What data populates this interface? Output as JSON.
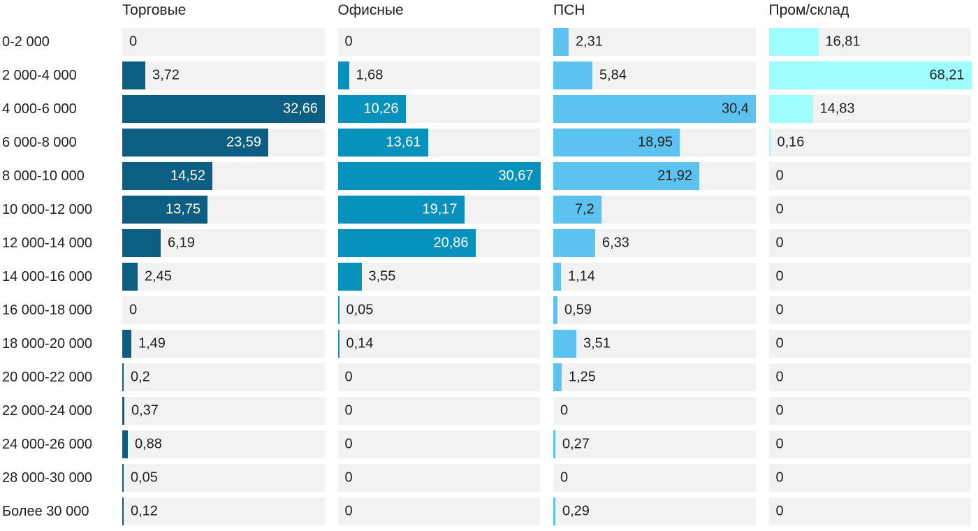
{
  "colors": {
    "background": "#ffffff",
    "track": "#f2f2f2",
    "text": "#212121",
    "value_text_outside": "#212121"
  },
  "chart_data": {
    "type": "bar",
    "orientation": "horizontal",
    "decimal_separator": ",",
    "grid": false,
    "legend": "column-headers-top",
    "categories": [
      "0-2 000",
      "2 000-4 000",
      "4 000-6 000",
      "6 000-8 000",
      "8 000-10 000",
      "10 000-12 000",
      "12 000-14 000",
      "14 000-16 000",
      "16 000-18 000",
      "18 000-20 000",
      "20 000-22 000",
      "22 000-24 000",
      "24 000-26 000",
      "28 000-30 000",
      "Более 30 000"
    ],
    "series": [
      {
        "name": "Торговые",
        "color": "#0c5e83",
        "inside_label_color": "#ffffff",
        "axis_max": 32.66,
        "values": [
          "0",
          "3,72",
          "32,66",
          "23,59",
          "14,52",
          "13,75",
          "6,19",
          "2,45",
          "0",
          "1,49",
          "0,2",
          "0,37",
          "0,88",
          "0,05",
          "0,12"
        ]
      },
      {
        "name": "Офисные",
        "color": "#0791bd",
        "inside_label_color": "#ffffff",
        "axis_max": 30.67,
        "values": [
          "0",
          "1,68",
          "10,26",
          "13,61",
          "30,67",
          "19,17",
          "20,86",
          "3,55",
          "0,05",
          "0,14",
          "0",
          "0",
          "0",
          "0",
          "0"
        ]
      },
      {
        "name": "ПСН",
        "color": "#5cc3f0",
        "inside_label_color": "#212121",
        "axis_max": 30.4,
        "values": [
          "2,31",
          "5,84",
          "30,4",
          "18,95",
          "21,92",
          "7,2",
          "6,33",
          "1,14",
          "0,59",
          "3,51",
          "1,25",
          "0",
          "0,27",
          "0",
          "0,29"
        ]
      },
      {
        "name": "Пром/склад",
        "color": "#9efdfe",
        "inside_label_color": "#212121",
        "axis_max": 68.21,
        "values": [
          "16,81",
          "68,21",
          "14,83",
          "0,16",
          "0",
          "0",
          "0",
          "0",
          "0",
          "0",
          "0",
          "0",
          "0",
          "0",
          "0"
        ]
      }
    ]
  }
}
